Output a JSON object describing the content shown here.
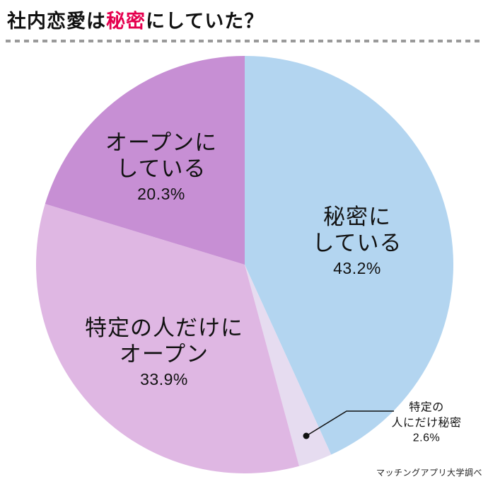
{
  "title": {
    "prefix": "社内恋愛は",
    "highlight": "秘密",
    "suffix": "にしていた？",
    "highlight_color": "#e5004f",
    "text_color": "#111111"
  },
  "source": "マッチングアプリ大学調べ",
  "chart_data": {
    "type": "pie",
    "title": "社内恋愛は秘密にしていた？",
    "start_angle_deg": -90,
    "direction": "clockwise",
    "legend_position": "none",
    "slices": [
      {
        "label": "秘密にしている",
        "value": 43.2,
        "pct_label": "43.2%",
        "color": "#b3d5f0",
        "label_lines": [
          "秘密に",
          "している"
        ]
      },
      {
        "label": "特定の人にだけ秘密",
        "value": 2.6,
        "pct_label": "2.6%",
        "color": "#e6dcf0",
        "label_lines": [
          "特定の",
          "人にだけ秘密"
        ],
        "callout": true
      },
      {
        "label": "特定の人だけにオープン",
        "value": 33.9,
        "pct_label": "33.9%",
        "color": "#dfb7e3",
        "label_lines": [
          "特定の人だけに",
          "オープン"
        ]
      },
      {
        "label": "オープンにしている",
        "value": 20.3,
        "pct_label": "20.3%",
        "color": "#c78fd4",
        "label_lines": [
          "オープンに",
          "している"
        ]
      }
    ]
  }
}
